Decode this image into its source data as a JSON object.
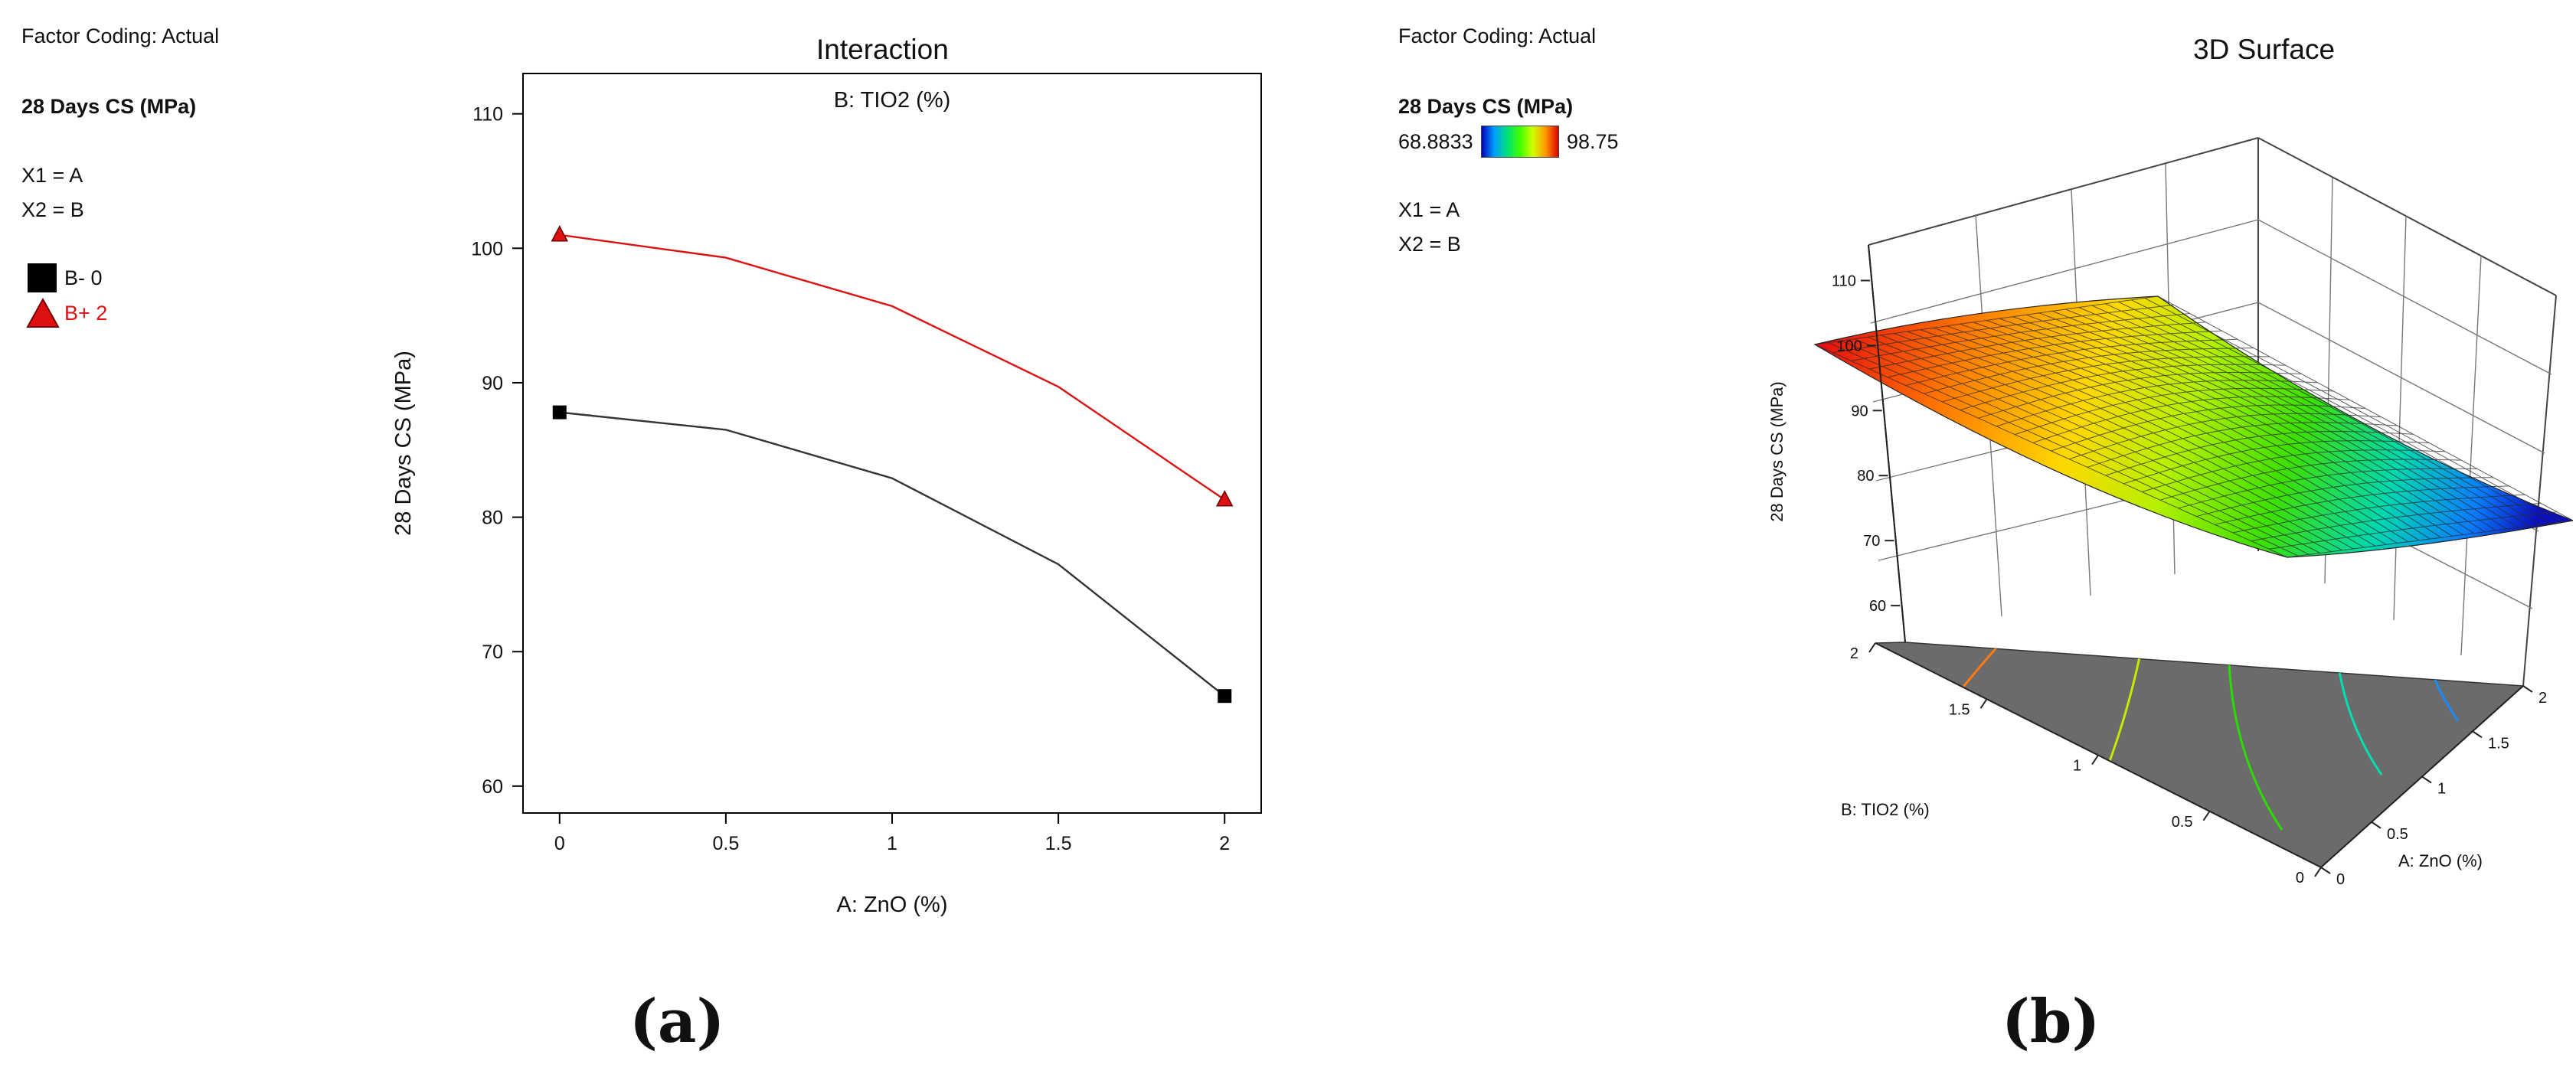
{
  "panel_a": {
    "factor_coding": "Factor Coding: Actual",
    "response": "28 Days CS (MPa)",
    "x1": "X1 = A",
    "x2": "X2 = B",
    "legend": [
      {
        "label": "B- 0",
        "color": "#000000",
        "symbol": "square"
      },
      {
        "label": "B+ 2",
        "color": "#dd1111",
        "symbol": "triangle"
      }
    ],
    "panel_label": "(a)"
  },
  "panel_b": {
    "factor_coding": "Factor Coding: Actual",
    "response": "28 Days CS (MPa)",
    "color_min": "68.8833",
    "color_max": "98.75",
    "color_min_color": "#1a1aff",
    "color_max_color": "#e00000",
    "x1": "X1 = A",
    "x2": "X2 = B",
    "panel_label": "(b)"
  },
  "chart_data": [
    {
      "type": "line",
      "title": "Interaction",
      "subtitle": "B: TIO2 (%)",
      "xlabel": "A: ZnO (%)",
      "ylabel": "28 Days CS (MPa)",
      "xlim": [
        -0.11,
        2.11
      ],
      "ylim": [
        58,
        113
      ],
      "xticks": [
        "0",
        "0.5",
        "1",
        "1.5",
        "2"
      ],
      "xtick_values": [
        0,
        0.5,
        1,
        1.5,
        2
      ],
      "yticks": [
        "60",
        "70",
        "80",
        "90",
        "100",
        "110"
      ],
      "ytick_values": [
        60,
        70,
        80,
        90,
        100,
        110
      ],
      "grid": false,
      "series": [
        {
          "name": "B- 0",
          "color": "#000000",
          "marker": "square",
          "points": [
            {
              "x": 0,
              "y": 87.8
            },
            {
              "x": 2,
              "y": 66.7
            }
          ],
          "curve": [
            {
              "x": 0,
              "y": 87.8
            },
            {
              "x": 0.5,
              "y": 86.5
            },
            {
              "x": 1,
              "y": 82.9
            },
            {
              "x": 1.5,
              "y": 76.5
            },
            {
              "x": 2,
              "y": 66.7
            }
          ]
        },
        {
          "name": "B+ 2",
          "color": "#dd1111",
          "marker": "triangle",
          "points": [
            {
              "x": 0,
              "y": 101
            },
            {
              "x": 2,
              "y": 81.3
            }
          ],
          "curve": [
            {
              "x": 0,
              "y": 101
            },
            {
              "x": 0.5,
              "y": 99.3
            },
            {
              "x": 1,
              "y": 95.7
            },
            {
              "x": 1.5,
              "y": 89.7
            },
            {
              "x": 2,
              "y": 81.3
            }
          ]
        }
      ]
    },
    {
      "type": "surface",
      "title": "3D Surface",
      "xlabel": "A: ZnO (%)",
      "ylabel": "B: TIO2 (%)",
      "zlabel": "28 Days CS (MPa)",
      "xticks": [
        "0",
        "0.5",
        "1",
        "1.5",
        "2"
      ],
      "yticks": [
        "0",
        "0.5",
        "1",
        "1.5",
        "2"
      ],
      "zticks": [
        "60",
        "70",
        "80",
        "90",
        "100",
        "110"
      ],
      "zlim": [
        60,
        110
      ],
      "color_range": [
        68.8833,
        98.75
      ],
      "corners": [
        {
          "A": 0,
          "B": 0,
          "z": 87.8
        },
        {
          "A": 2,
          "B": 0,
          "z": 66.7
        },
        {
          "A": 0,
          "B": 2,
          "z": 101
        },
        {
          "A": 2,
          "B": 2,
          "z": 81.3
        }
      ]
    }
  ]
}
